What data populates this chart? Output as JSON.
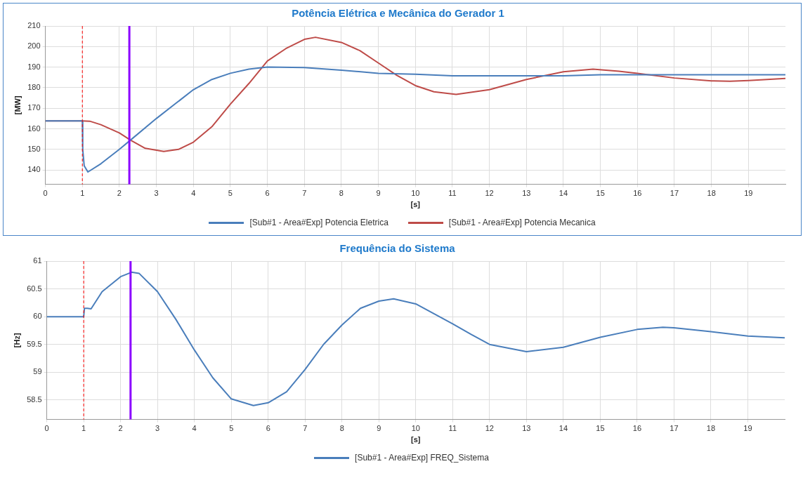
{
  "chart_data": [
    {
      "type": "line",
      "title": "Potência Elétrica e Mecânica do Gerador 1",
      "xlabel": "[s]",
      "ylabel": "[MW]",
      "xlim": [
        0,
        20
      ],
      "xticks": [
        0,
        1,
        2,
        3,
        4,
        5,
        6,
        7,
        8,
        9,
        10,
        11,
        12,
        13,
        14,
        15,
        16,
        17,
        18,
        19
      ],
      "ylim": [
        133,
        210
      ],
      "yticks": [
        140,
        150,
        160,
        170,
        180,
        190,
        200,
        210
      ],
      "grid": true,
      "legend": "bottom",
      "marker": "none",
      "line_style": "solid",
      "ref_lines": [
        {
          "axis": "x",
          "value": 1,
          "color": "#ff0000",
          "line_style": "dashed"
        },
        {
          "axis": "x",
          "value": 2.27,
          "color": "#8b00ff",
          "line_style": "solid"
        }
      ],
      "series": [
        {
          "name": "[Sub#1 - Area#Exp] Potencia Eletrica",
          "color": "#4a7ebb",
          "x": [
            0,
            1,
            1.01,
            1.05,
            1.15,
            1.5,
            2,
            2.3,
            3,
            3.5,
            4,
            4.5,
            5,
            5.5,
            6,
            7,
            8,
            9,
            10,
            11,
            12,
            13,
            14,
            15,
            16,
            17,
            18,
            19,
            20
          ],
          "values": [
            163.8,
            163.8,
            150,
            142,
            139,
            143,
            150,
            154.5,
            165,
            172,
            179,
            184,
            187,
            189,
            190,
            189.8,
            188.5,
            187,
            186.5,
            185.8,
            185.8,
            185.8,
            185.8,
            186.3,
            186.3,
            186.3,
            186.3,
            186.3,
            186.3
          ]
        },
        {
          "name": "[Sub#1 - Area#Exp] Potencia Mecanica",
          "color": "#be4b48",
          "x": [
            0,
            1,
            1.2,
            1.5,
            2,
            2.3,
            2.7,
            3.2,
            3.6,
            4,
            4.5,
            5,
            5.5,
            6,
            6.5,
            7,
            7.3,
            8,
            8.5,
            9,
            9.5,
            10,
            10.5,
            11.1,
            12,
            13,
            14,
            14.8,
            15.5,
            16,
            17,
            18,
            18.5,
            19,
            20
          ],
          "values": [
            163.8,
            163.8,
            163.7,
            162,
            158,
            154.5,
            150.5,
            149,
            150,
            153.5,
            161,
            172,
            182,
            193,
            199,
            203.5,
            204.5,
            202,
            198,
            192,
            186,
            181,
            178,
            176.7,
            179,
            184,
            187.7,
            189,
            188,
            187,
            184.7,
            183.3,
            183.1,
            183.5,
            184.5
          ]
        }
      ]
    },
    {
      "type": "line",
      "title": "Frequência do Sistema",
      "xlabel": "[s]",
      "ylabel": "[Hz]",
      "xlim": [
        0,
        20
      ],
      "xticks": [
        0,
        1,
        2,
        3,
        4,
        5,
        6,
        7,
        8,
        9,
        10,
        11,
        12,
        13,
        14,
        15,
        16,
        17,
        18,
        19
      ],
      "ylim": [
        58.15,
        61
      ],
      "yticks": [
        58.5,
        59,
        59.5,
        60,
        60.5,
        61
      ],
      "grid": true,
      "legend": "bottom",
      "marker": "none",
      "line_style": "solid",
      "ref_lines": [
        {
          "axis": "x",
          "value": 1,
          "color": "#ff0000",
          "line_style": "dashed"
        },
        {
          "axis": "x",
          "value": 2.27,
          "color": "#8b00ff",
          "line_style": "solid"
        }
      ],
      "series": [
        {
          "name": "[Sub#1 - Area#Exp] FREQ_Sistema",
          "color": "#4a7ebb",
          "x": [
            0,
            1,
            1.02,
            1.1,
            1.2,
            1.5,
            2,
            2.3,
            2.5,
            3,
            3.5,
            4,
            4.5,
            5,
            5.6,
            6,
            6.5,
            7,
            7.5,
            8,
            8.5,
            9,
            9.4,
            10,
            10.5,
            11,
            11.5,
            12,
            13,
            14,
            15,
            16,
            16.7,
            17,
            18,
            19,
            20
          ],
          "values": [
            60,
            60,
            60.15,
            60.15,
            60.14,
            60.45,
            60.72,
            60.8,
            60.78,
            60.45,
            59.95,
            59.4,
            58.9,
            58.52,
            58.4,
            58.45,
            58.65,
            59.05,
            59.5,
            59.85,
            60.15,
            60.28,
            60.32,
            60.23,
            60.05,
            59.87,
            59.68,
            59.5,
            59.37,
            59.45,
            59.63,
            59.77,
            59.81,
            59.8,
            59.73,
            59.65,
            59.62
          ]
        }
      ]
    }
  ]
}
